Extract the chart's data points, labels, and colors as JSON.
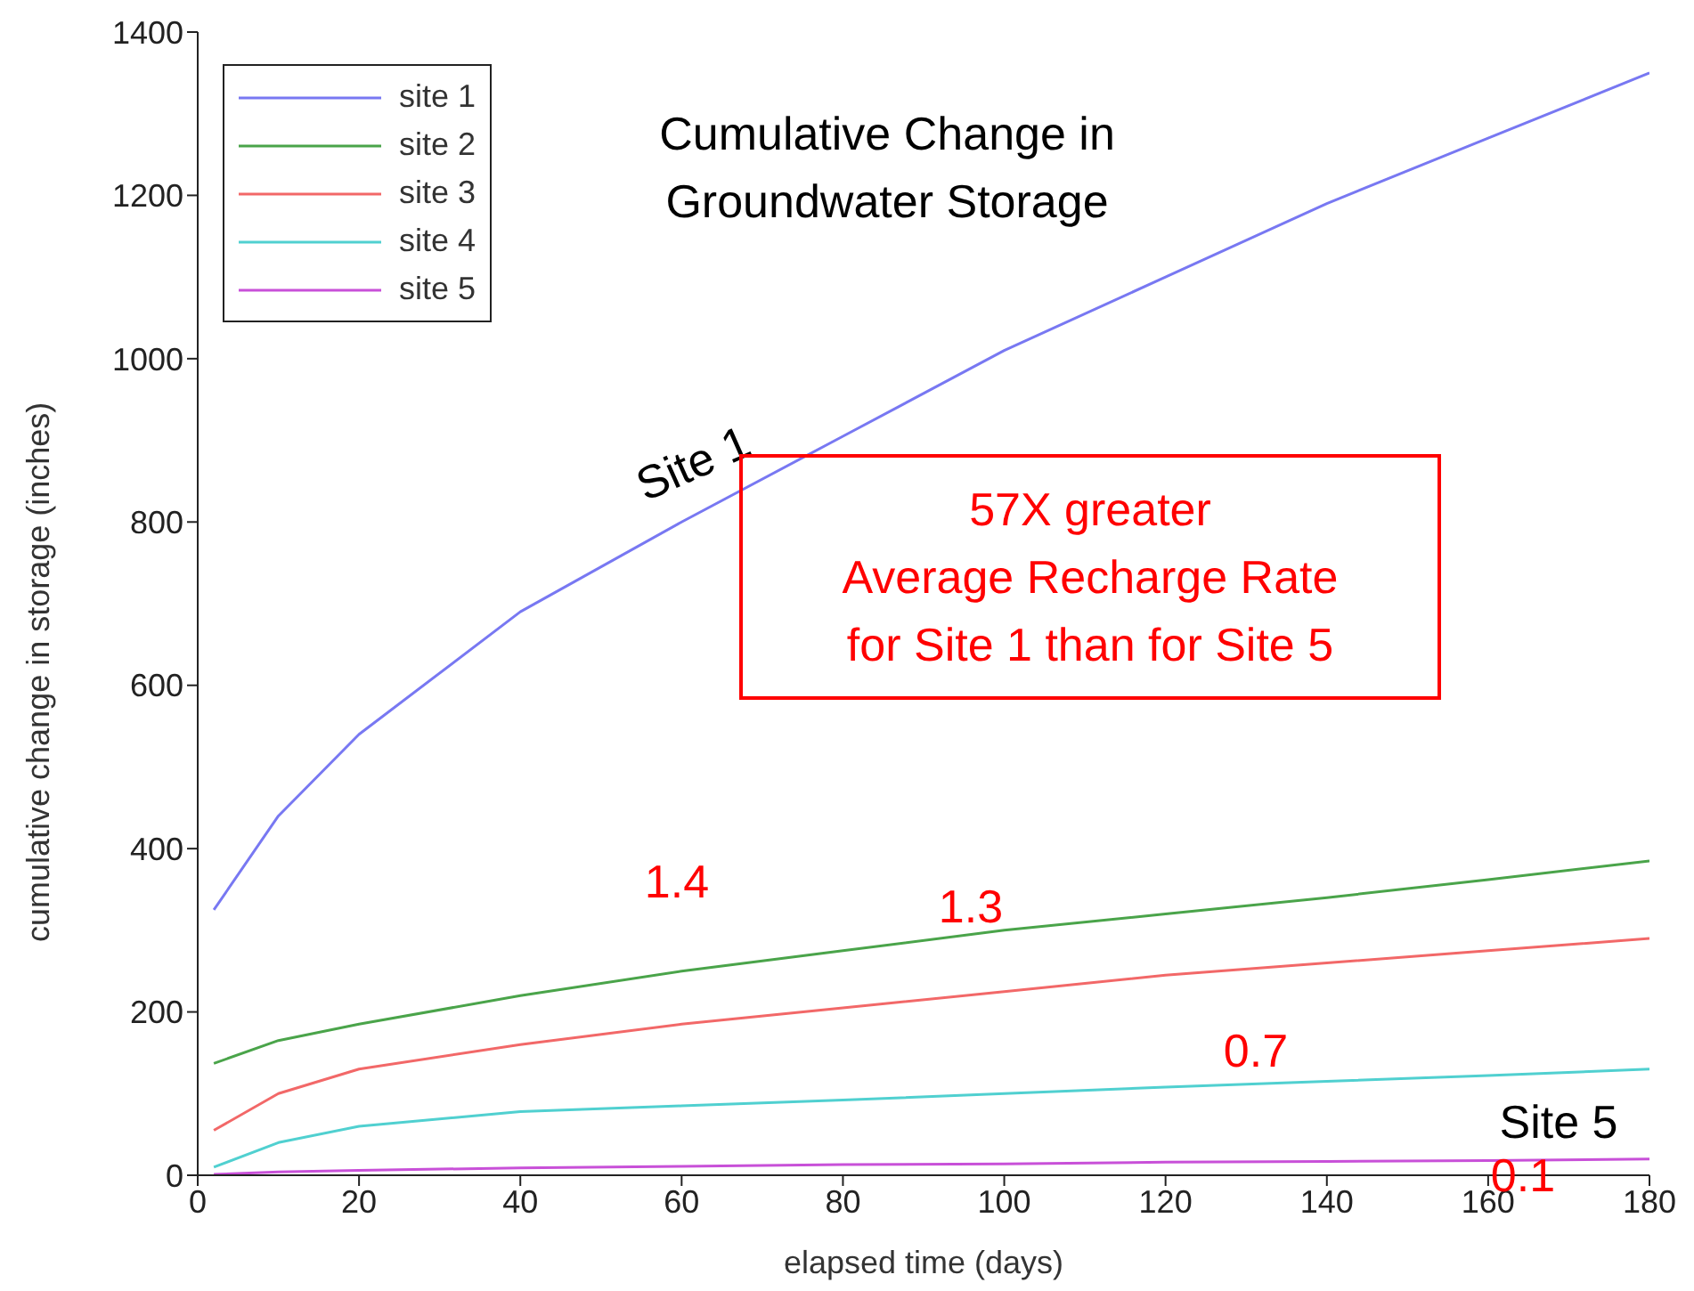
{
  "chart_data": {
    "type": "line",
    "title": "Cumulative Change in\nGroundwater Storage",
    "xlabel": "elapsed time (days)",
    "ylabel": "cumulative change in storage (inches)",
    "x": [
      2,
      10,
      20,
      40,
      60,
      80,
      100,
      120,
      140,
      160,
      180
    ],
    "series": [
      {
        "name": "site 1",
        "color": "#7878f2",
        "values": [
          325,
          440,
          540,
          690,
          800,
          905,
          1010,
          1100,
          1190,
          1270,
          1350
        ]
      },
      {
        "name": "site 2",
        "color": "#4aa44a",
        "values": [
          137,
          165,
          185,
          220,
          250,
          275,
          300,
          320,
          340,
          362,
          385
        ]
      },
      {
        "name": "site 3",
        "color": "#f26868",
        "values": [
          55,
          100,
          130,
          160,
          185,
          205,
          225,
          245,
          260,
          275,
          290
        ]
      },
      {
        "name": "site 4",
        "color": "#50d0d0",
        "values": [
          10,
          40,
          60,
          78,
          85,
          92,
          100,
          108,
          115,
          122,
          130
        ]
      },
      {
        "name": "site 5",
        "color": "#c850d8",
        "values": [
          1,
          4,
          6,
          9,
          11,
          13,
          14,
          16,
          17,
          18,
          20
        ]
      }
    ],
    "xlim": [
      0,
      180
    ],
    "xticks": [
      0,
      20,
      40,
      60,
      80,
      100,
      120,
      140,
      160,
      180
    ],
    "ylim": [
      0,
      1400
    ],
    "yticks": [
      0,
      200,
      400,
      600,
      800,
      1000,
      1200,
      1400
    ],
    "grid": false,
    "legend": "top left",
    "marker": "none",
    "line_style": "solid",
    "annotations": [
      "Site 1",
      "1.4",
      "1.3",
      "0.7",
      "Site 5",
      "0.1",
      "57X greater\nAverage Recharge Rate\nfor Site 1 than for Site 5"
    ]
  }
}
